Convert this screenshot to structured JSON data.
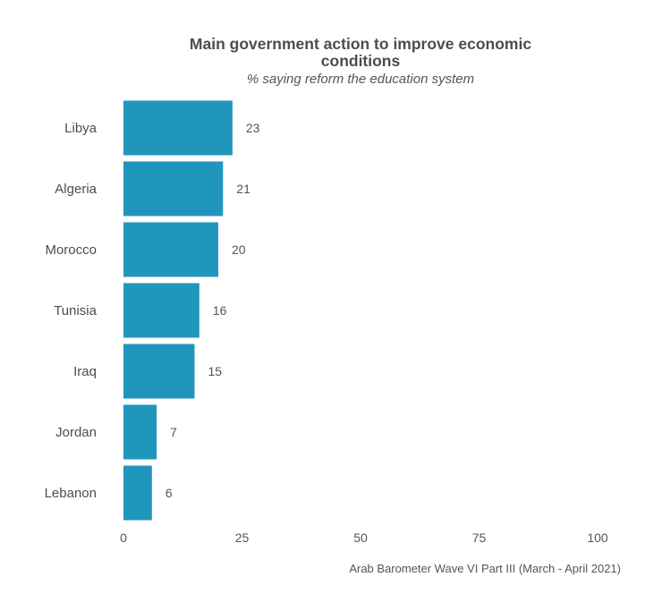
{
  "chart_data": {
    "type": "bar",
    "orientation": "horizontal",
    "title": "Main government action to improve economic conditions",
    "subtitle": "% saying reform the education system",
    "caption": "Arab Barometer Wave VI Part III (March - April 2021)",
    "categories": [
      "Libya",
      "Algeria",
      "Morocco",
      "Tunisia",
      "Iraq",
      "Jordan",
      "Lebanon"
    ],
    "values": [
      23,
      21,
      20,
      16,
      15,
      7,
      6
    ],
    "xlim": [
      0,
      100
    ],
    "xticks": [
      0,
      25,
      50,
      75,
      100
    ],
    "grid": false,
    "legend": "none",
    "bar_color": "#2196bd"
  }
}
